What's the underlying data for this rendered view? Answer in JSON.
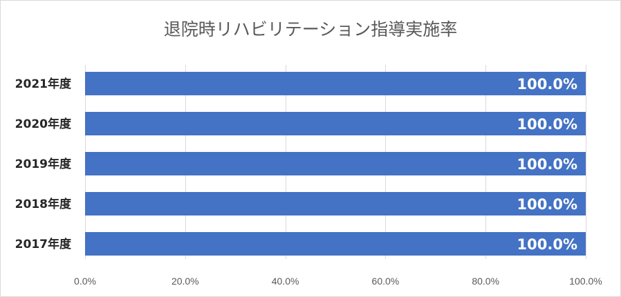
{
  "chart_data": {
    "type": "bar",
    "orientation": "horizontal",
    "title": "退院時リハビリテーション指導実施率",
    "categories": [
      "2021年度",
      "2020年度",
      "2019年度",
      "2018年度",
      "2017年度"
    ],
    "values": [
      100.0,
      100.0,
      100.0,
      100.0,
      100.0
    ],
    "data_labels": [
      "100.0%",
      "100.0%",
      "100.0%",
      "100.0%",
      "100.0%"
    ],
    "xlim": [
      0,
      100
    ],
    "xticks": [
      0,
      20,
      40,
      60,
      80,
      100
    ],
    "xtick_labels": [
      "0.0%",
      "20.0%",
      "40.0%",
      "60.0%",
      "80.0%",
      "100.0%"
    ],
    "xlabel": "",
    "ylabel": "",
    "grid": true,
    "legend": "none",
    "bar_color": "#4472c4"
  }
}
